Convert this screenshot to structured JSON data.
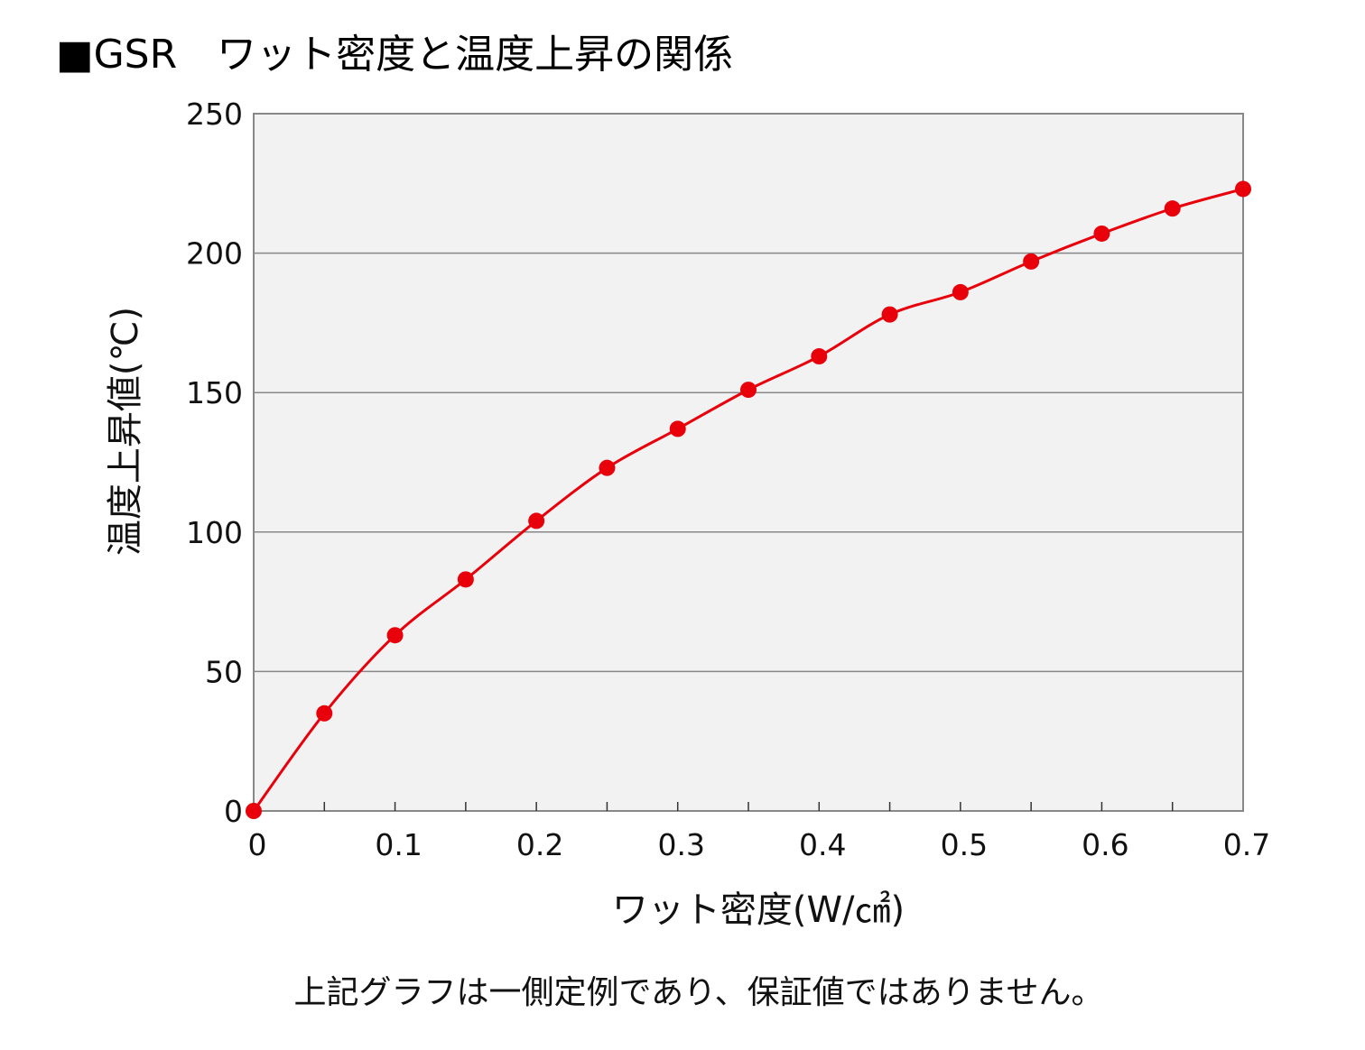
{
  "header": {
    "title": "■GSR　ワット密度と温度上昇の関係"
  },
  "footer": {
    "note": "上記グラフは一側定例であり、保証値ではありません。"
  },
  "chart_data": {
    "type": "line",
    "title": "■GSR　ワット密度と温度上昇の関係",
    "xlabel": "ワット密度(W/㎠)",
    "ylabel": "温度上昇値(℃)",
    "xlim": [
      0,
      0.7
    ],
    "ylim": [
      0,
      250
    ],
    "xticks": [
      "0",
      "0.1",
      "0.2",
      "0.3",
      "0.4",
      "0.5",
      "0.6",
      "0.7"
    ],
    "yticks": [
      "0",
      "50",
      "100",
      "150",
      "200",
      "250"
    ],
    "grid": "horizontal",
    "legend": "none",
    "series": [
      {
        "color": "#e8000b",
        "x": [
          0,
          0.05,
          0.1,
          0.15,
          0.2,
          0.25,
          0.3,
          0.35,
          0.4,
          0.45,
          0.5,
          0.55,
          0.6,
          0.65,
          0.7
        ],
        "y": [
          0,
          35,
          63,
          83,
          104,
          123,
          137,
          151,
          163,
          178,
          186,
          197,
          207,
          216,
          223
        ]
      }
    ],
    "plot_background": "#f2f2f2",
    "grid_color": "#888888"
  }
}
